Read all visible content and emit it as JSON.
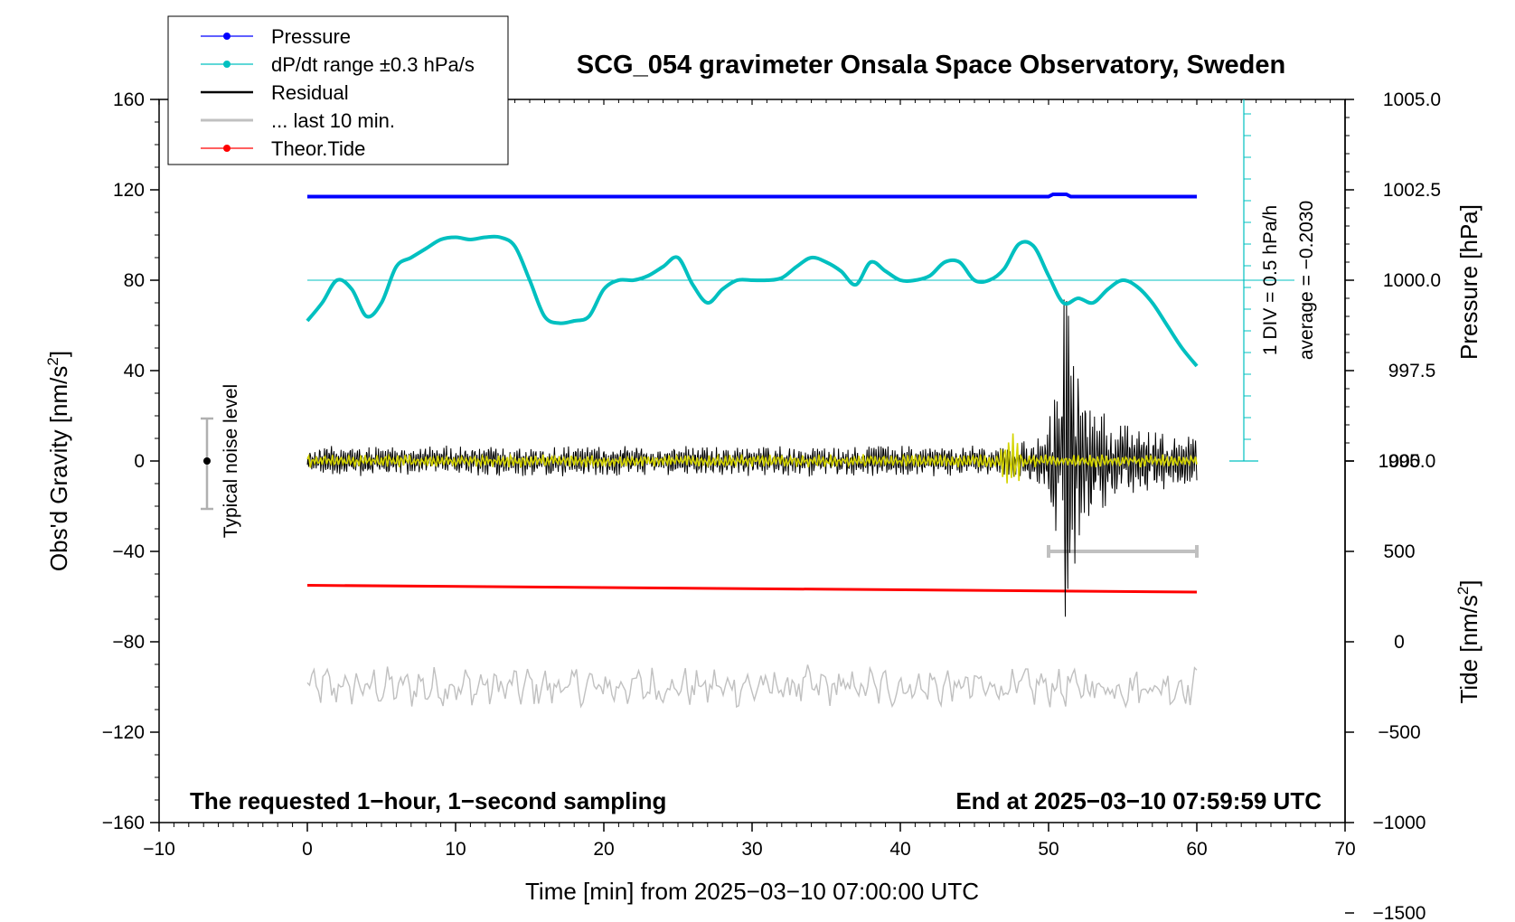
{
  "chart_data": {
    "type": "line",
    "title": "SCG_054 gravimeter Onsala Space Observatory, Sweden",
    "xlabel": "Time [min] from 2025−03−10 07:00:00 UTC",
    "ylabel_left": "Obs'd Gravity [nm/s",
    "ylabel_left_sup": "2",
    "ylabel_left_end": "]",
    "ylabel_right_pressure": "Pressure [hPa]",
    "ylabel_right_tide": "Tide [nm/s",
    "ylabel_right_tide_sup": "2",
    "ylabel_right_tide_end": "]",
    "xlim": [
      -10,
      70
    ],
    "ylim": [
      -160,
      160
    ],
    "x_ticks": [
      "−10",
      "0",
      "10",
      "20",
      "30",
      "40",
      "50",
      "60",
      "70"
    ],
    "y_ticks": [
      "160",
      "120",
      "80",
      "40",
      "0",
      "−40",
      "−80",
      "−120",
      "−160"
    ],
    "pressure_ticks": [
      "1005.0",
      "1002.5",
      "1000.0",
      "997.5",
      "995.0"
    ],
    "tide_ticks": [
      "1000",
      "500",
      "0",
      "−500",
      "−1000",
      "−1500"
    ],
    "legend": [
      "Pressure",
      "dP/dt range ±0.3 hPa/s",
      "Residual",
      "... last 10 min.",
      "Theor.Tide"
    ],
    "legend_placement": "top-left",
    "noise_label": "Typical noise level",
    "noise_range": [
      -20,
      20
    ],
    "div_label": "1 DIV = 0.5 hPa/h",
    "average_label": "average = −0.2030",
    "footer_left": "The requested 1−hour, 1−second sampling",
    "footer_right": "End at 2025−03−10 07:59:59 UTC",
    "series": [
      {
        "name": "Pressure",
        "color": "#0000ff",
        "x": [
          0,
          50,
          50.3,
          51.2,
          51.5,
          60
        ],
        "y": [
          117,
          117,
          118,
          118,
          117,
          117
        ]
      },
      {
        "name": "dP/dt range ±0.3 hPa/s",
        "color": "#00c0c0",
        "x": [
          0,
          1,
          2,
          3,
          4,
          5,
          6,
          7,
          8,
          9,
          10,
          11,
          12,
          13,
          14,
          15,
          16,
          17,
          18,
          19,
          20,
          21,
          22,
          23,
          24,
          25,
          26,
          27,
          28,
          29,
          30,
          31,
          32,
          33,
          34,
          35,
          36,
          37,
          38,
          39,
          40,
          41,
          42,
          43,
          44,
          45,
          46,
          47,
          48,
          49,
          50,
          51,
          52,
          53,
          54,
          55,
          56,
          57,
          58,
          59,
          60
        ],
        "y": [
          62,
          70,
          80,
          76,
          64,
          70,
          86,
          90,
          94,
          98,
          99,
          98,
          99,
          99,
          95,
          80,
          64,
          61,
          62,
          64,
          76,
          80,
          80,
          82,
          86,
          90,
          78,
          70,
          76,
          80,
          80,
          80,
          81,
          86,
          90,
          88,
          84,
          78,
          88,
          84,
          80,
          80,
          82,
          88,
          88,
          80,
          80,
          85,
          96,
          95,
          82,
          70,
          72,
          70,
          76,
          80,
          77,
          70,
          60,
          50,
          42
        ]
      },
      {
        "name": "Residual",
        "color": "#000000",
        "x_range": [
          0,
          60
        ],
        "noise": 6,
        "event_start": 46.5,
        "event_peak": 51,
        "event_amplitude": 66
      },
      {
        "name": "... last 10 min.",
        "color": "#c0c0c0",
        "x": [
          50,
          60
        ],
        "y": [
          -40,
          -40
        ]
      },
      {
        "name": "Theor.Tide",
        "color": "#ff0000",
        "x": [
          0,
          60
        ],
        "y": [
          -55,
          -58
        ]
      },
      {
        "name": "",
        "color": "#c0c0c0",
        "x_range": [
          0,
          60
        ],
        "offset": -100,
        "noise": 6
      },
      {
        "name": "",
        "color": "#d4d400",
        "x_range": [
          0,
          60
        ],
        "offset": 0,
        "noise": 2
      }
    ],
    "grid": false
  }
}
